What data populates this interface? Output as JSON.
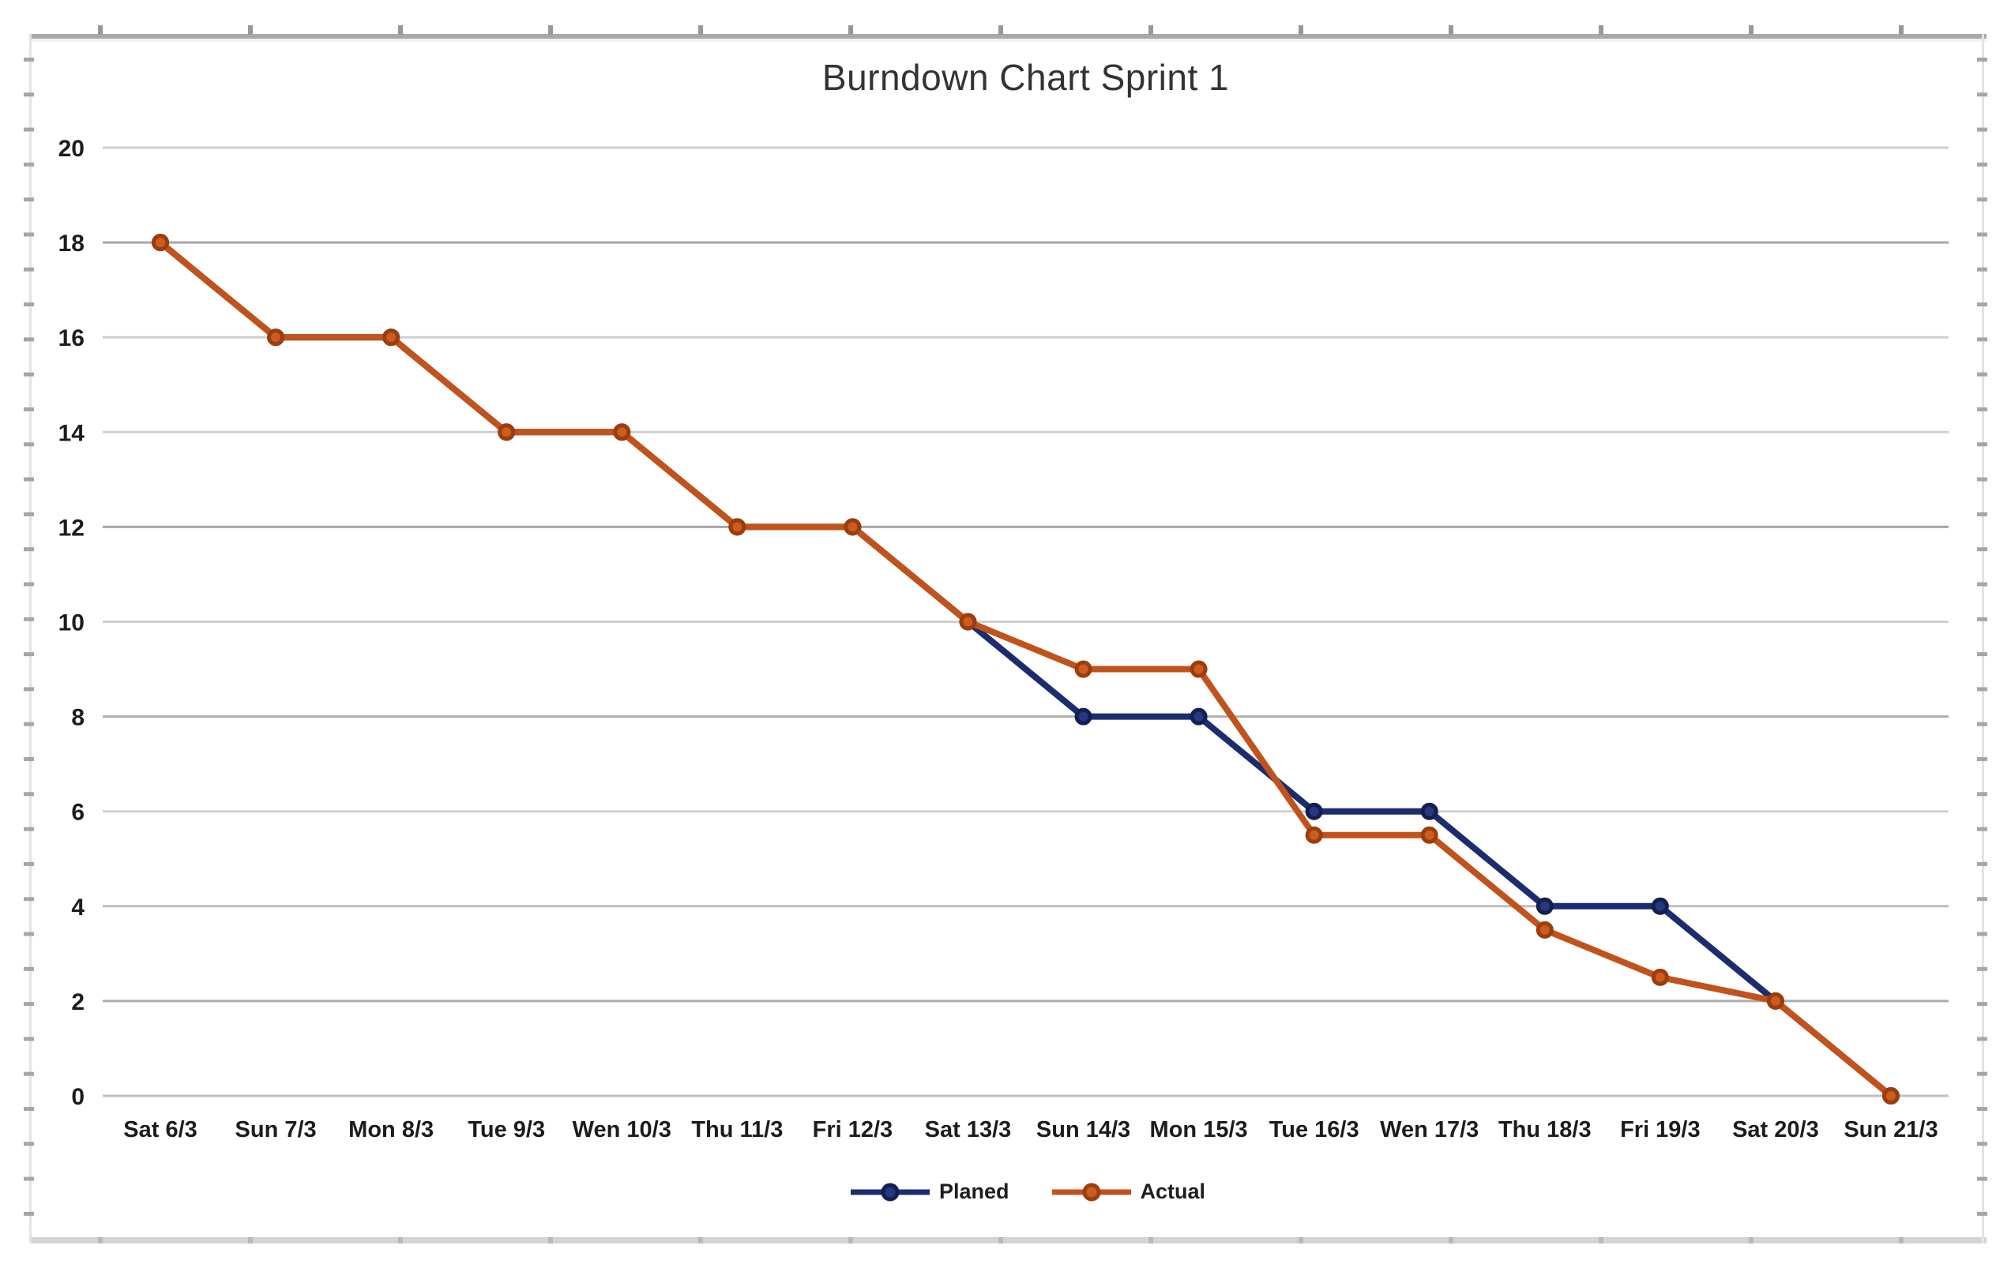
{
  "chart_data": {
    "type": "line",
    "title": "Burndown Chart Sprint 1",
    "categories": [
      "Sat 6/3",
      "Sun 7/3",
      "Mon 8/3",
      "Tue 9/3",
      "Wen 10/3",
      "Thu 11/3",
      "Fri 12/3",
      "Sat 13/3",
      "Sun 14/3",
      "Mon 15/3",
      "Tue 16/3",
      "Wen 17/3",
      "Thu 18/3",
      "Fri 19/3",
      "Sat 20/3",
      "Sun 21/3"
    ],
    "series": [
      {
        "name": "Planed",
        "color": "#1C2C6E",
        "marker_fill": "#26387F",
        "marker_stroke": "#131F50",
        "values": [
          18,
          16,
          16,
          14,
          14,
          12,
          12,
          10,
          8,
          8,
          6,
          6,
          4,
          4,
          2,
          0
        ]
      },
      {
        "name": "Actual",
        "color": "#C2521B",
        "marker_fill": "#CB5D20",
        "marker_stroke": "#9C3D0C",
        "values": [
          18,
          16,
          16,
          14,
          14,
          12,
          12,
          10,
          9,
          9,
          5.5,
          5.5,
          3.5,
          2.5,
          2,
          0
        ]
      }
    ],
    "ylim": [
      0,
      20
    ],
    "ytick_step": 2,
    "yticks": [
      "20",
      "18",
      "16",
      "14",
      "12",
      "10",
      "8",
      "6",
      "4",
      "2",
      "0"
    ],
    "grid": "horizontal",
    "gridline_color": "#CFCFCF",
    "legend_position": "bottom-center"
  }
}
